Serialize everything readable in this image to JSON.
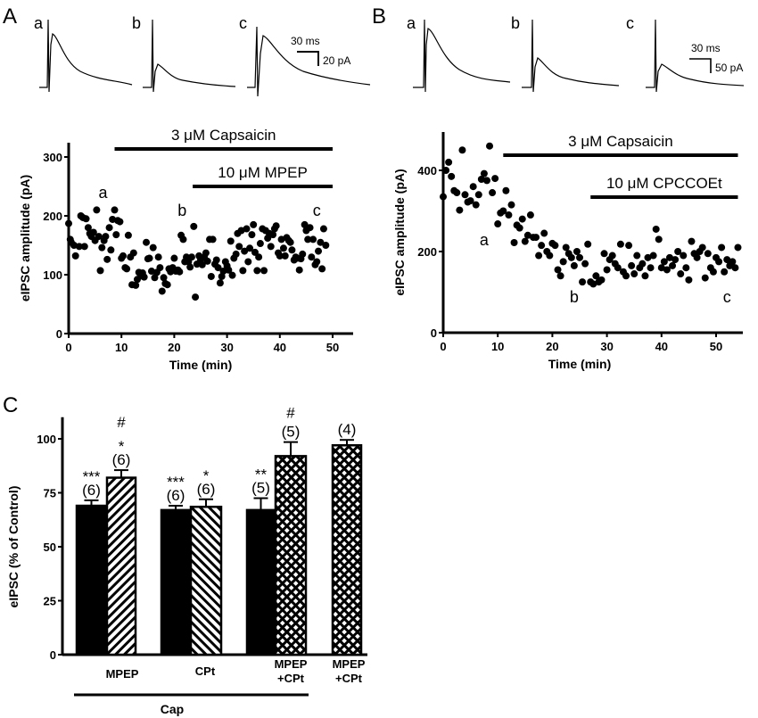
{
  "panel_labels": {
    "A": "A",
    "B": "B",
    "C": "C"
  },
  "traces": {
    "A": {
      "labels": [
        "a",
        "b",
        "c"
      ],
      "scale_time": "30 ms",
      "scale_amp": "20 pA"
    },
    "B": {
      "labels": [
        "a",
        "b",
        "c"
      ],
      "scale_time": "30 ms",
      "scale_amp": "50 pA"
    }
  },
  "chart_data": [
    {
      "type": "scatter",
      "panel": "A",
      "xlabel": "Time (min)",
      "ylabel": "eIPSC amplitude (pA)",
      "xlim": [
        0,
        55
      ],
      "ylim": [
        0,
        320
      ],
      "xticks": [
        0,
        10,
        20,
        30,
        40,
        50
      ],
      "yticks": [
        0,
        100,
        200,
        300
      ],
      "drug_bars": [
        {
          "label": "3 μM Capsaicin",
          "start": 8.7,
          "end": 50
        },
        {
          "label": "10 μM MPEP",
          "start": 23.5,
          "end": 50
        }
      ],
      "point_labels": [
        {
          "text": "a",
          "x": 6.5,
          "y": 230
        },
        {
          "text": "b",
          "x": 21.5,
          "y": 200
        },
        {
          "text": "c",
          "x": 47,
          "y": 200
        }
      ],
      "points": [
        [
          0,
          187
        ],
        [
          0.3,
          160
        ],
        [
          0.5,
          155
        ],
        [
          1,
          150
        ],
        [
          1.3,
          132
        ],
        [
          2,
          148
        ],
        [
          2.3,
          200
        ],
        [
          2.7,
          197
        ],
        [
          3,
          148
        ],
        [
          3.3,
          195
        ],
        [
          3.7,
          180
        ],
        [
          4,
          170
        ],
        [
          4.3,
          165
        ],
        [
          4.7,
          172
        ],
        [
          5,
          158
        ],
        [
          5.3,
          210
        ],
        [
          5.7,
          165
        ],
        [
          6,
          107
        ],
        [
          6.3,
          146
        ],
        [
          6.7,
          158
        ],
        [
          7,
          165
        ],
        [
          7.3,
          126
        ],
        [
          7.7,
          180
        ],
        [
          8,
          142
        ],
        [
          8.3,
          194
        ],
        [
          8.7,
          210
        ],
        [
          9,
          168
        ],
        [
          9.3,
          192
        ],
        [
          9.7,
          190
        ],
        [
          10,
          128
        ],
        [
          10.3,
          132
        ],
        [
          10.7,
          112
        ],
        [
          11,
          110
        ],
        [
          11.3,
          167
        ],
        [
          11.7,
          130
        ],
        [
          12,
          83
        ],
        [
          12.3,
          137
        ],
        [
          12.7,
          82
        ],
        [
          13,
          92
        ],
        [
          13.3,
          104
        ],
        [
          13.7,
          98
        ],
        [
          14,
          103
        ],
        [
          14.3,
          96
        ],
        [
          14.7,
          155
        ],
        [
          15,
          127
        ],
        [
          15.3,
          128
        ],
        [
          15.7,
          106
        ],
        [
          16,
          146
        ],
        [
          16.3,
          95
        ],
        [
          16.7,
          104
        ],
        [
          17,
          130
        ],
        [
          17.3,
          112
        ],
        [
          17.7,
          72
        ],
        [
          18,
          95
        ],
        [
          18.3,
          85
        ],
        [
          18.7,
          83
        ],
        [
          19,
          110
        ],
        [
          19.3,
          105
        ],
        [
          19.7,
          112
        ],
        [
          20,
          128
        ],
        [
          20.3,
          106
        ],
        [
          20.7,
          108
        ],
        [
          21,
          105
        ],
        [
          21.3,
          167
        ],
        [
          21.7,
          160
        ],
        [
          22,
          122
        ],
        [
          22.3,
          130
        ],
        [
          22.7,
          122
        ],
        [
          23,
          113
        ],
        [
          23.3,
          130
        ],
        [
          23.7,
          182
        ],
        [
          24,
          62
        ],
        [
          24.3,
          118
        ],
        [
          24.7,
          132
        ],
        [
          25,
          125
        ],
        [
          25.3,
          117
        ],
        [
          25.7,
          130
        ],
        [
          26,
          137
        ],
        [
          26.3,
          123
        ],
        [
          26.7,
          160
        ],
        [
          27,
          97
        ],
        [
          27.3,
          160
        ],
        [
          27.7,
          118
        ],
        [
          28,
          125
        ],
        [
          28.3,
          112
        ],
        [
          28.7,
          86
        ],
        [
          29,
          97
        ],
        [
          29.3,
          106
        ],
        [
          29.7,
          122
        ],
        [
          30,
          115
        ],
        [
          30.3,
          108
        ],
        [
          30.7,
          157
        ],
        [
          31,
          99
        ],
        [
          31.3,
          128
        ],
        [
          31.7,
          135
        ],
        [
          32,
          170
        ],
        [
          32.3,
          148
        ],
        [
          32.7,
          175
        ],
        [
          33,
          107
        ],
        [
          33.3,
          140
        ],
        [
          33.7,
          178
        ],
        [
          34,
          122
        ],
        [
          34.3,
          145
        ],
        [
          34.7,
          168
        ],
        [
          35,
          185
        ],
        [
          35.3,
          138
        ],
        [
          35.7,
          107
        ],
        [
          36,
          130
        ],
        [
          36.3,
          153
        ],
        [
          36.7,
          178
        ],
        [
          37,
          107
        ],
        [
          37.3,
          175
        ],
        [
          37.7,
          162
        ],
        [
          38,
          170
        ],
        [
          38.3,
          148
        ],
        [
          38.7,
          168
        ],
        [
          39,
          178
        ],
        [
          39.3,
          183
        ],
        [
          39.7,
          137
        ],
        [
          40,
          132
        ],
        [
          40.3,
          160
        ],
        [
          40.7,
          145
        ],
        [
          41,
          132
        ],
        [
          41.3,
          163
        ],
        [
          41.7,
          158
        ],
        [
          42,
          155
        ],
        [
          42.3,
          142
        ],
        [
          42.7,
          125
        ],
        [
          43,
          130
        ],
        [
          43.3,
          128
        ],
        [
          43.7,
          108
        ],
        [
          44,
          127
        ],
        [
          44.3,
          135
        ],
        [
          44.7,
          185
        ],
        [
          45,
          175
        ],
        [
          45.3,
          160
        ],
        [
          45.7,
          180
        ],
        [
          46,
          130
        ],
        [
          46.3,
          160
        ],
        [
          46.7,
          117
        ],
        [
          47,
          122
        ],
        [
          47.3,
          140
        ],
        [
          47.7,
          155
        ],
        [
          48,
          110
        ],
        [
          48.3,
          178
        ],
        [
          48.7,
          150
        ]
      ]
    },
    {
      "type": "scatter",
      "panel": "B",
      "xlabel": "Time (min)",
      "ylabel": "eIPSC amplitude (pA)",
      "xlim": [
        0,
        55
      ],
      "ylim": [
        0,
        490
      ],
      "xticks": [
        0,
        10,
        20,
        30,
        40,
        50
      ],
      "yticks": [
        0,
        200,
        400
      ],
      "drug_bars": [
        {
          "label": "3 μM Capsaicin",
          "start": 11,
          "end": 54
        },
        {
          "label": "10 μM CPCCOEt",
          "start": 27,
          "end": 54
        }
      ],
      "point_labels": [
        {
          "text": "a",
          "x": 7.5,
          "y": 215
        },
        {
          "text": "b",
          "x": 24,
          "y": 75
        },
        {
          "text": "c",
          "x": 52,
          "y": 75
        }
      ],
      "points": [
        [
          0,
          335
        ],
        [
          0.5,
          400
        ],
        [
          1,
          420
        ],
        [
          1.5,
          385
        ],
        [
          2,
          350
        ],
        [
          2.5,
          345
        ],
        [
          3,
          302
        ],
        [
          3.5,
          450
        ],
        [
          4,
          340
        ],
        [
          4.5,
          322
        ],
        [
          5,
          325
        ],
        [
          5.5,
          360
        ],
        [
          6,
          315
        ],
        [
          6.5,
          340
        ],
        [
          7,
          378
        ],
        [
          7.5,
          392
        ],
        [
          8,
          375
        ],
        [
          8.5,
          460
        ],
        [
          9,
          345
        ],
        [
          9.5,
          380
        ],
        [
          10,
          268
        ],
        [
          10.5,
          295
        ],
        [
          11,
          300
        ],
        [
          11.5,
          350
        ],
        [
          12,
          290
        ],
        [
          12.5,
          315
        ],
        [
          13,
          222
        ],
        [
          13.5,
          265
        ],
        [
          14,
          258
        ],
        [
          14.5,
          280
        ],
        [
          15,
          225
        ],
        [
          15.5,
          240
        ],
        [
          16,
          290
        ],
        [
          16.5,
          235
        ],
        [
          17,
          235
        ],
        [
          17.5,
          190
        ],
        [
          18,
          215
        ],
        [
          18.5,
          245
        ],
        [
          19,
          200
        ],
        [
          19.5,
          190
        ],
        [
          20,
          220
        ],
        [
          20.5,
          215
        ],
        [
          21,
          155
        ],
        [
          21.5,
          140
        ],
        [
          22,
          175
        ],
        [
          22.5,
          210
        ],
        [
          23,
          195
        ],
        [
          23.5,
          185
        ],
        [
          24,
          165
        ],
        [
          24.5,
          200
        ],
        [
          25,
          185
        ],
        [
          25.5,
          125
        ],
        [
          26,
          170
        ],
        [
          26.5,
          218
        ],
        [
          27,
          125
        ],
        [
          27.5,
          120
        ],
        [
          28,
          140
        ],
        [
          28.5,
          125
        ],
        [
          29,
          130
        ],
        [
          29.5,
          195
        ],
        [
          30,
          155
        ],
        [
          30.5,
          180
        ],
        [
          31,
          190
        ],
        [
          31.5,
          170
        ],
        [
          32,
          160
        ],
        [
          32.5,
          218
        ],
        [
          33,
          150
        ],
        [
          33.5,
          140
        ],
        [
          34,
          215
        ],
        [
          34.5,
          165
        ],
        [
          35,
          145
        ],
        [
          35.5,
          190
        ],
        [
          36,
          160
        ],
        [
          36.5,
          170
        ],
        [
          37,
          140
        ],
        [
          37.5,
          185
        ],
        [
          38,
          160
        ],
        [
          38.5,
          190
        ],
        [
          39,
          255
        ],
        [
          39.5,
          230
        ],
        [
          40,
          160
        ],
        [
          40.5,
          175
        ],
        [
          41,
          155
        ],
        [
          41.5,
          185
        ],
        [
          42,
          165
        ],
        [
          42.5,
          180
        ],
        [
          43,
          200
        ],
        [
          43.5,
          145
        ],
        [
          44,
          190
        ],
        [
          44.5,
          160
        ],
        [
          45,
          130
        ],
        [
          45.5,
          225
        ],
        [
          46,
          195
        ],
        [
          46.5,
          185
        ],
        [
          47,
          200
        ],
        [
          47.5,
          210
        ],
        [
          48,
          135
        ],
        [
          48.5,
          195
        ],
        [
          49,
          160
        ],
        [
          49.5,
          150
        ],
        [
          50,
          185
        ],
        [
          50.5,
          175
        ],
        [
          51,
          210
        ],
        [
          51.5,
          150
        ],
        [
          52,
          180
        ],
        [
          52.5,
          165
        ],
        [
          53,
          175
        ],
        [
          53.5,
          160
        ],
        [
          54,
          210
        ]
      ]
    },
    {
      "type": "bar",
      "panel": "C",
      "ylabel": "eIPSC (% of Control)",
      "ylim": [
        0,
        110
      ],
      "yticks": [
        0,
        25,
        50,
        75,
        100
      ],
      "categories": [
        {
          "label": [
            "MPEP"
          ]
        },
        {
          "label": [
            "CPt"
          ]
        },
        {
          "label": [
            "MPEP",
            "+CPt"
          ]
        },
        {
          "label": [
            "MPEP",
            "+CPt"
          ]
        }
      ],
      "group_bracket": "Cap",
      "bars": [
        {
          "value": 69,
          "error": 2.5,
          "fill": "solid",
          "n": "(6)",
          "sig": [
            "***"
          ]
        },
        {
          "value": 82,
          "error": 3.5,
          "fill": "hatch-forward",
          "n": "(6)",
          "sig": [
            "#",
            "*"
          ]
        },
        {
          "value": 67,
          "error": 2,
          "fill": "solid",
          "n": "(6)",
          "sig": [
            "***"
          ]
        },
        {
          "value": 68.5,
          "error": 3.5,
          "fill": "hatch-back",
          "n": "(6)",
          "sig": [
            "*"
          ]
        },
        {
          "value": 67,
          "error": 5.5,
          "fill": "solid",
          "n": "(5)",
          "sig": [
            "**"
          ]
        },
        {
          "value": 92,
          "error": 6.5,
          "fill": "crosshatch",
          "n": "(5)",
          "sig": [
            "#"
          ]
        },
        {
          "value": 97,
          "error": 2.5,
          "fill": "crosshatch",
          "n": "(4)",
          "sig": []
        }
      ]
    }
  ]
}
